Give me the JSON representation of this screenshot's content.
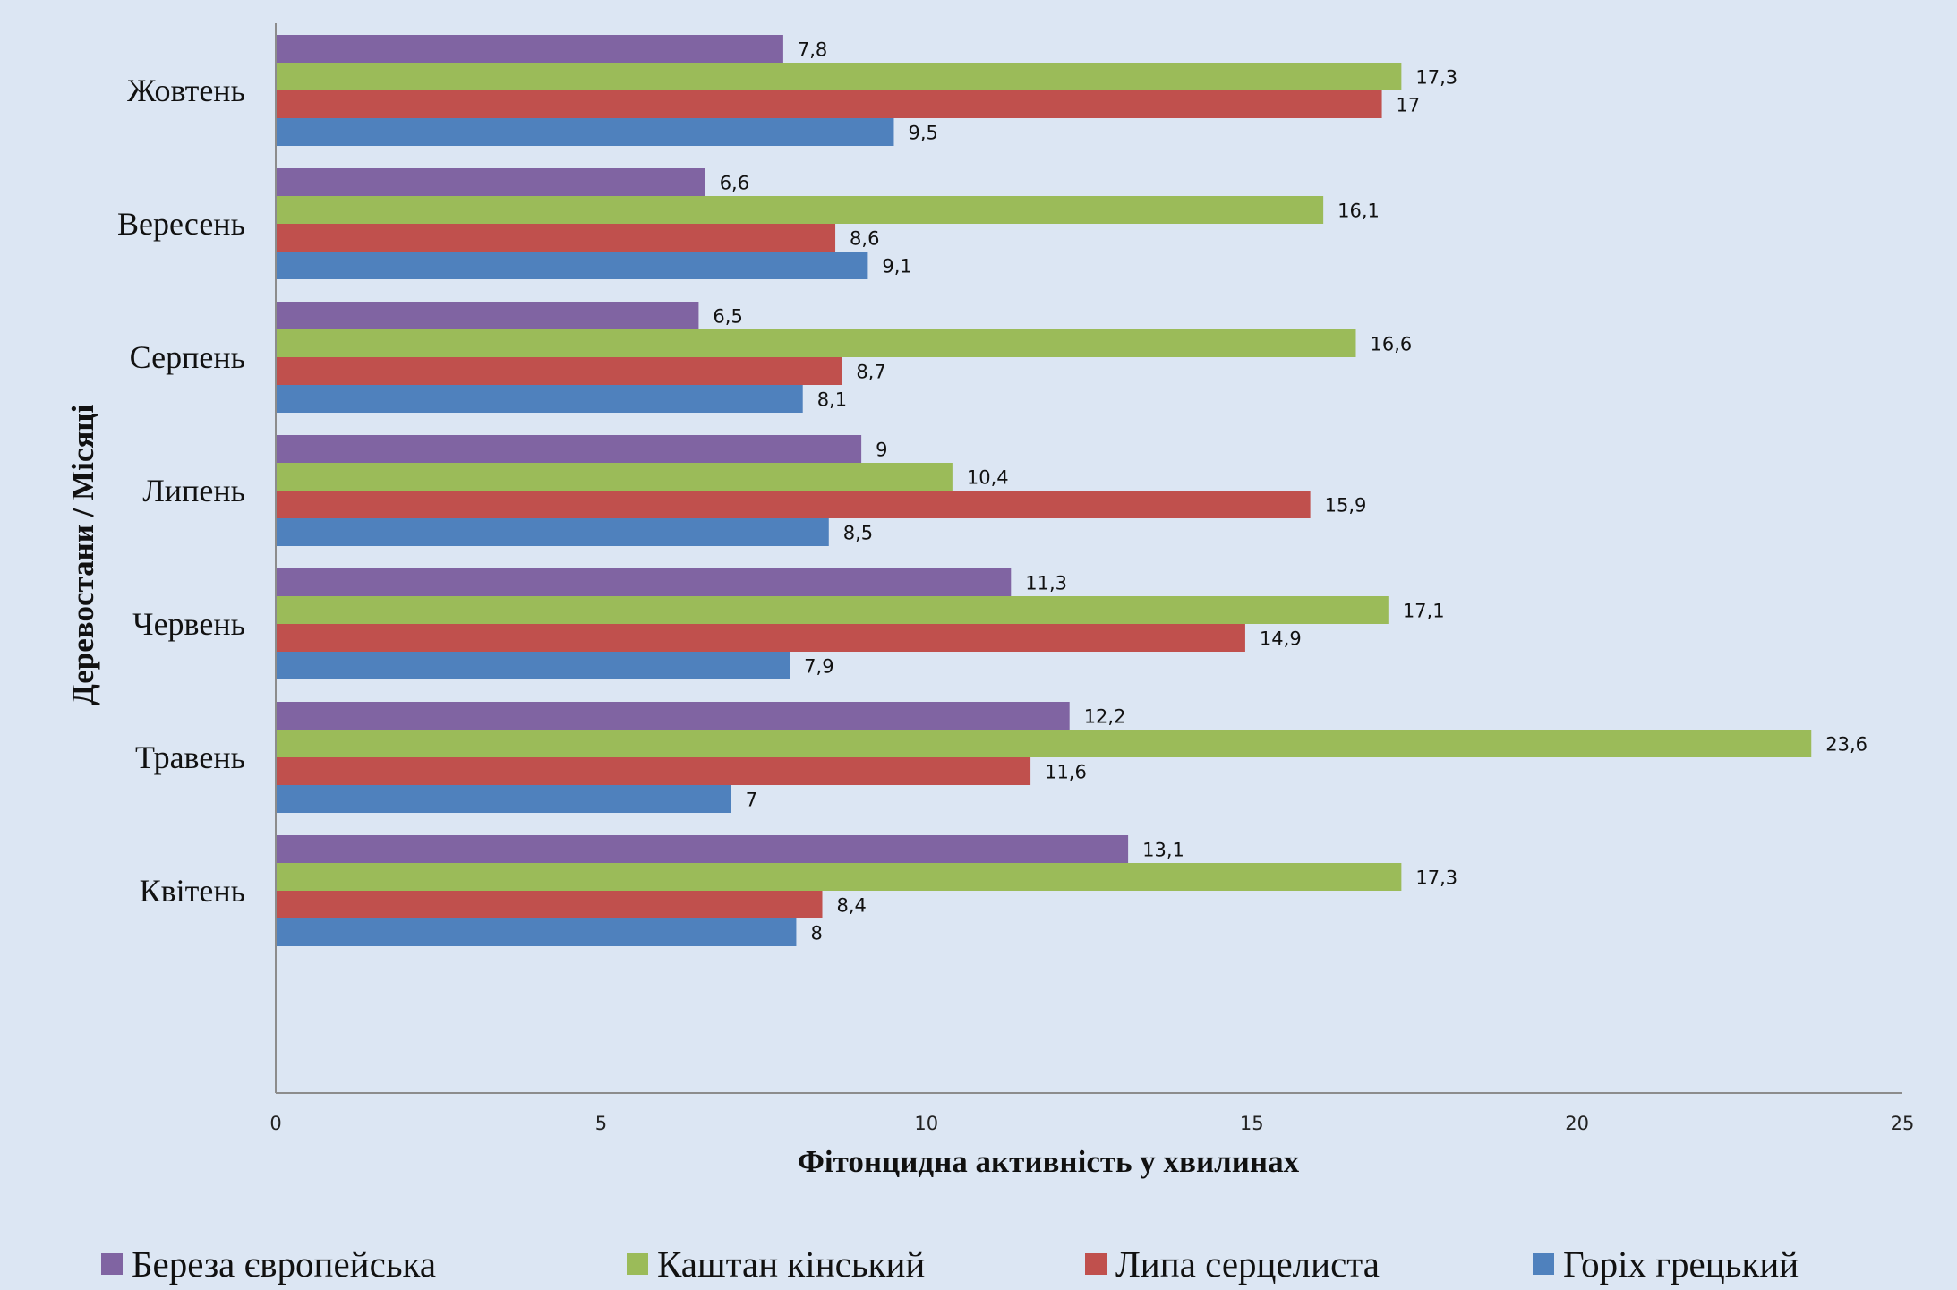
{
  "chart_data": {
    "type": "bar",
    "orientation": "horizontal",
    "categories": [
      "Квітень",
      "Травень",
      "Червень",
      "Липень",
      "Серпень",
      "Вересень",
      "Жовтень"
    ],
    "series": [
      {
        "name": "Береза європейська",
        "color": "#8064a2",
        "values": [
          13.1,
          12.2,
          11.3,
          9,
          6.5,
          6.6,
          7.8
        ],
        "labels": [
          "13,1",
          "12,2",
          "11,3",
          "9",
          "6,5",
          "6,6",
          "7,8"
        ]
      },
      {
        "name": "Каштан кінський",
        "color": "#9bbb59",
        "values": [
          17.3,
          23.6,
          17.1,
          10.4,
          16.6,
          16.1,
          17.3
        ],
        "labels": [
          "17,3",
          "23,6",
          "17,1",
          "10,4",
          "16,6",
          "16,1",
          "17,3"
        ]
      },
      {
        "name": "Липа серцелиста",
        "color": "#c0504d",
        "values": [
          8.4,
          11.6,
          14.9,
          15.9,
          8.7,
          8.6,
          17
        ],
        "labels": [
          "8,4",
          "11,6",
          "14,9",
          "15,9",
          "8,7",
          "8,6",
          "17"
        ]
      },
      {
        "name": "Горіх грецький",
        "color": "#4f81bd",
        "values": [
          8,
          7,
          7.9,
          8.5,
          8.1,
          9.1,
          9.5
        ],
        "labels": [
          "8",
          "7",
          "7,9",
          "8,5",
          "8,1",
          "9,1",
          "9,5"
        ]
      }
    ],
    "xlabel": "Фітонцидна активність у хвилинах",
    "ylabel": "Деревостани / Місяці",
    "xlim": [
      0,
      25
    ],
    "xticks": [
      0,
      5,
      10,
      15,
      20,
      25
    ],
    "grid": false,
    "legend_position": "bottom"
  }
}
